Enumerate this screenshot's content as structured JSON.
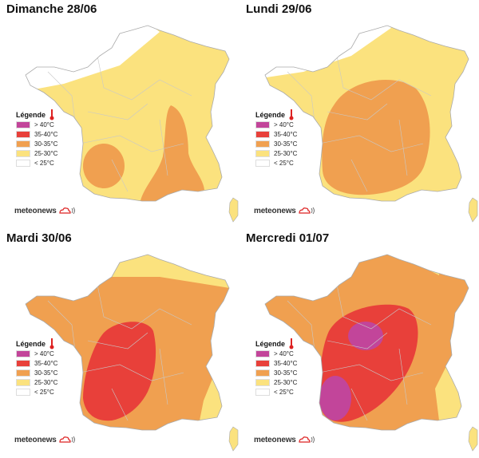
{
  "panels": [
    {
      "title": "Dimanche 28/06"
    },
    {
      "title": "Lundi 29/06"
    },
    {
      "title": "Mardi 30/06"
    },
    {
      "title": "Mercredi 01/07"
    }
  ],
  "legend": {
    "title": "Légende",
    "items": [
      {
        "label": "> 40°C",
        "color": "#c2459a"
      },
      {
        "label": "35-40°C",
        "color": "#e8403a"
      },
      {
        "label": "30-35°C",
        "color": "#f0a050"
      },
      {
        "label": "25-30°C",
        "color": "#fbe27e"
      },
      {
        "label": "< 25°C",
        "color": "#ffffff"
      }
    ]
  },
  "brand": {
    "name": "meteonews"
  }
}
